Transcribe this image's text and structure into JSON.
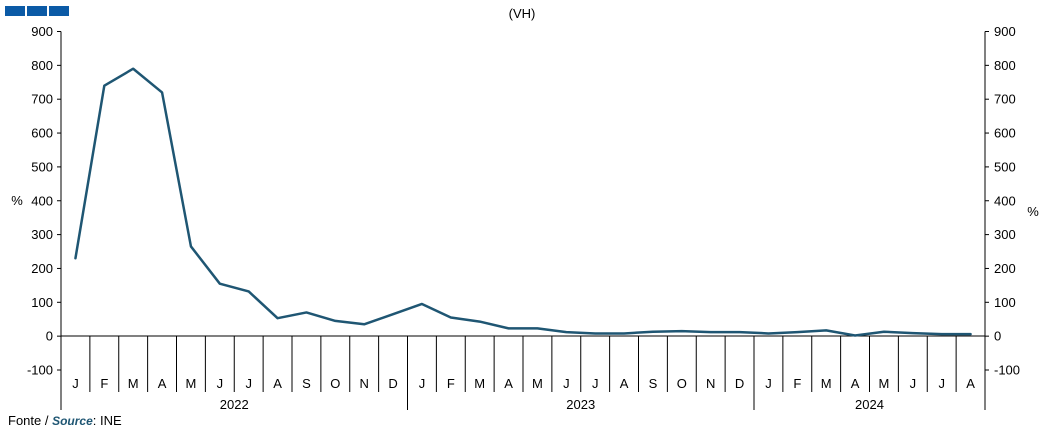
{
  "chart_data": {
    "type": "line",
    "title": "(VH)",
    "ylabel_left": "%",
    "ylabel_right": "%",
    "ylim": [
      -100,
      900
    ],
    "yticks": [
      -100,
      0,
      100,
      200,
      300,
      400,
      500,
      600,
      700,
      800,
      900
    ],
    "grid": false,
    "legend": "none",
    "series": [
      {
        "color": "#1f5673",
        "values": [
          230,
          740,
          790,
          720,
          265,
          155,
          132,
          53,
          70,
          45,
          35,
          65,
          95,
          55,
          43,
          23,
          23,
          12,
          8,
          8,
          13,
          15,
          12,
          12,
          8,
          12,
          17,
          2,
          13,
          9,
          6,
          6
        ]
      }
    ],
    "months": [
      "J",
      "F",
      "M",
      "A",
      "M",
      "J",
      "J",
      "A",
      "S",
      "O",
      "N",
      "D",
      "J",
      "F",
      "M",
      "A",
      "M",
      "J",
      "J",
      "A",
      "S",
      "O",
      "N",
      "D",
      "J",
      "F",
      "M",
      "A",
      "M",
      "J",
      "J",
      "A"
    ],
    "years": [
      {
        "label": "2022",
        "months": 12
      },
      {
        "label": "2023",
        "months": 12
      },
      {
        "label": "2024",
        "months": 8
      }
    ]
  },
  "source": {
    "prefix": "Fonte / ",
    "emph": "Source",
    "suffix": ": INE"
  },
  "colors": {
    "brand": "#0b5aa6",
    "line": "#1f5673"
  }
}
